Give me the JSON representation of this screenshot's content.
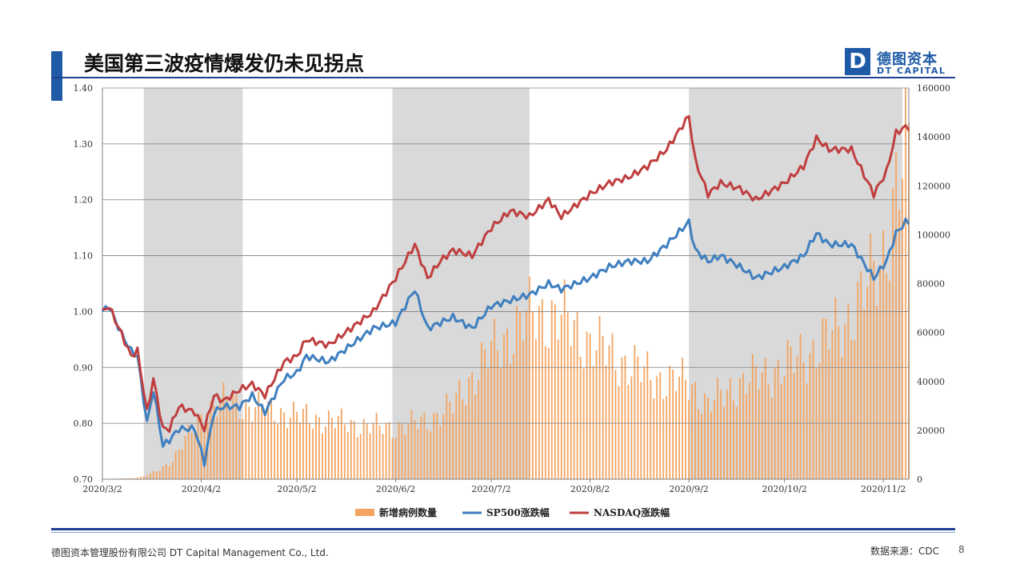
{
  "slide": {
    "title": "美国第三波疫情爆发仍未见拐点",
    "logo_mark": "D",
    "logo_cn": "德图资本",
    "logo_en": "DT CAPITAL",
    "footer_left": "德图资本管理股份有限公司  DT Capital  Management  Co., Ltd.",
    "footer_source": "数据来源：CDC",
    "page_number": "8",
    "accent_color": "#1f5aa6"
  },
  "chart_data": {
    "type": "bar+line",
    "x_tick_labels": [
      "2020/3/2",
      "2020/4/2",
      "2020/5/2",
      "2020/6/2",
      "2020/7/2",
      "2020/8/2",
      "2020/9/2",
      "2020/10/2",
      "2020/11/2"
    ],
    "y_left": {
      "ticks": [
        "0.70",
        "0.80",
        "0.90",
        "1.00",
        "1.10",
        "1.20",
        "1.30",
        "1.40"
      ],
      "lim": [
        0.7,
        1.4
      ]
    },
    "y_right": {
      "ticks": [
        "0",
        "20000",
        "40000",
        "60000",
        "80000",
        "100000",
        "120000",
        "140000",
        "160000"
      ],
      "lim": [
        0,
        160000
      ]
    },
    "grid": true,
    "legend_position": "bottom",
    "shaded_periods": [
      {
        "start": "2020-03-15",
        "end": "2020-04-15"
      },
      {
        "start": "2020-06-01",
        "end": "2020-07-14"
      },
      {
        "start": "2020-09-02",
        "end": "2020-11-08"
      }
    ],
    "series": [
      {
        "name": "新增病例数量",
        "type": "bar",
        "axis": "right",
        "color": "#f4a460",
        "points": [
          [
            "2020-03-02",
            0
          ],
          [
            "2020-03-12",
            500
          ],
          [
            "2020-03-16",
            1500
          ],
          [
            "2020-03-20",
            4000
          ],
          [
            "2020-03-24",
            8000
          ],
          [
            "2020-03-28",
            16000
          ],
          [
            "2020-04-02",
            25000
          ],
          [
            "2020-04-06",
            30000
          ],
          [
            "2020-04-10",
            32000
          ],
          [
            "2020-04-15",
            30000
          ],
          [
            "2020-04-24",
            28000
          ],
          [
            "2020-05-02",
            26000
          ],
          [
            "2020-05-12",
            24000
          ],
          [
            "2020-05-22",
            22000
          ],
          [
            "2020-06-02",
            21000
          ],
          [
            "2020-06-12",
            24000
          ],
          [
            "2020-06-20",
            30000
          ],
          [
            "2020-06-26",
            42000
          ],
          [
            "2020-07-02",
            52000
          ],
          [
            "2020-07-10",
            62000
          ],
          [
            "2020-07-16",
            68000
          ],
          [
            "2020-07-24",
            66000
          ],
          [
            "2020-08-02",
            56000
          ],
          [
            "2020-08-10",
            50000
          ],
          [
            "2020-08-18",
            44000
          ],
          [
            "2020-08-26",
            40000
          ],
          [
            "2020-09-02",
            40000
          ],
          [
            "2020-09-08",
            30000
          ],
          [
            "2020-09-16",
            38000
          ],
          [
            "2020-09-24",
            42000
          ],
          [
            "2020-10-02",
            46000
          ],
          [
            "2020-10-10",
            52000
          ],
          [
            "2020-10-16",
            58000
          ],
          [
            "2020-10-22",
            66000
          ],
          [
            "2020-10-28",
            78000
          ],
          [
            "2020-11-02",
            92000
          ],
          [
            "2020-11-06",
            118000
          ],
          [
            "2020-11-09",
            130000
          ]
        ]
      },
      {
        "name": "SP500涨跌幅",
        "type": "line",
        "axis": "left",
        "color": "#3f7fbf",
        "points": [
          [
            "2020-03-02",
            1.0
          ],
          [
            "2020-03-04",
            1.01
          ],
          [
            "2020-03-08",
            0.96
          ],
          [
            "2020-03-11",
            0.93
          ],
          [
            "2020-03-13",
            0.92
          ],
          [
            "2020-03-16",
            0.8
          ],
          [
            "2020-03-18",
            0.86
          ],
          [
            "2020-03-21",
            0.76
          ],
          [
            "2020-03-23",
            0.77
          ],
          [
            "2020-03-26",
            0.79
          ],
          [
            "2020-03-31",
            0.79
          ],
          [
            "2020-04-03",
            0.73
          ],
          [
            "2020-04-06",
            0.82
          ],
          [
            "2020-04-09",
            0.83
          ],
          [
            "2020-04-14",
            0.83
          ],
          [
            "2020-04-18",
            0.85
          ],
          [
            "2020-04-22",
            0.82
          ],
          [
            "2020-04-28",
            0.88
          ],
          [
            "2020-05-02",
            0.89
          ],
          [
            "2020-05-05",
            0.92
          ],
          [
            "2020-05-12",
            0.91
          ],
          [
            "2020-05-19",
            0.94
          ],
          [
            "2020-05-26",
            0.97
          ],
          [
            "2020-06-02",
            0.98
          ],
          [
            "2020-06-08",
            1.04
          ],
          [
            "2020-06-12",
            0.97
          ],
          [
            "2020-06-16",
            0.98
          ],
          [
            "2020-06-20",
            0.99
          ],
          [
            "2020-06-26",
            0.97
          ],
          [
            "2020-07-02",
            1.01
          ],
          [
            "2020-07-08",
            1.02
          ],
          [
            "2020-07-14",
            1.03
          ],
          [
            "2020-07-20",
            1.05
          ],
          [
            "2020-07-24",
            1.04
          ],
          [
            "2020-08-02",
            1.06
          ],
          [
            "2020-08-08",
            1.08
          ],
          [
            "2020-08-14",
            1.09
          ],
          [
            "2020-08-20",
            1.09
          ],
          [
            "2020-08-26",
            1.12
          ],
          [
            "2020-09-02",
            1.16
          ],
          [
            "2020-09-04",
            1.11
          ],
          [
            "2020-09-08",
            1.09
          ],
          [
            "2020-09-12",
            1.1
          ],
          [
            "2020-09-18",
            1.08
          ],
          [
            "2020-09-23",
            1.06
          ],
          [
            "2020-10-02",
            1.08
          ],
          [
            "2020-10-08",
            1.1
          ],
          [
            "2020-10-12",
            1.14
          ],
          [
            "2020-10-16",
            1.12
          ],
          [
            "2020-10-23",
            1.12
          ],
          [
            "2020-10-30",
            1.06
          ],
          [
            "2020-11-03",
            1.09
          ],
          [
            "2020-11-06",
            1.14
          ],
          [
            "2020-11-09",
            1.16
          ]
        ]
      },
      {
        "name": "NASDAQ涨跌幅",
        "type": "line",
        "axis": "left",
        "color": "#bf3f3f",
        "points": [
          [
            "2020-03-02",
            1.0
          ],
          [
            "2020-03-04",
            1.01
          ],
          [
            "2020-03-08",
            0.96
          ],
          [
            "2020-03-11",
            0.92
          ],
          [
            "2020-03-13",
            0.93
          ],
          [
            "2020-03-16",
            0.82
          ],
          [
            "2020-03-18",
            0.88
          ],
          [
            "2020-03-21",
            0.79
          ],
          [
            "2020-03-23",
            0.79
          ],
          [
            "2020-03-26",
            0.83
          ],
          [
            "2020-03-31",
            0.82
          ],
          [
            "2020-04-03",
            0.79
          ],
          [
            "2020-04-06",
            0.85
          ],
          [
            "2020-04-09",
            0.84
          ],
          [
            "2020-04-14",
            0.86
          ],
          [
            "2020-04-18",
            0.87
          ],
          [
            "2020-04-22",
            0.85
          ],
          [
            "2020-04-28",
            0.91
          ],
          [
            "2020-05-02",
            0.92
          ],
          [
            "2020-05-05",
            0.95
          ],
          [
            "2020-05-12",
            0.94
          ],
          [
            "2020-05-19",
            0.97
          ],
          [
            "2020-05-26",
            1.0
          ],
          [
            "2020-06-02",
            1.06
          ],
          [
            "2020-06-08",
            1.12
          ],
          [
            "2020-06-12",
            1.06
          ],
          [
            "2020-06-16",
            1.09
          ],
          [
            "2020-06-20",
            1.11
          ],
          [
            "2020-06-26",
            1.1
          ],
          [
            "2020-07-02",
            1.15
          ],
          [
            "2020-07-08",
            1.18
          ],
          [
            "2020-07-14",
            1.17
          ],
          [
            "2020-07-20",
            1.2
          ],
          [
            "2020-07-24",
            1.17
          ],
          [
            "2020-08-02",
            1.21
          ],
          [
            "2020-08-08",
            1.23
          ],
          [
            "2020-08-14",
            1.24
          ],
          [
            "2020-08-20",
            1.26
          ],
          [
            "2020-08-26",
            1.29
          ],
          [
            "2020-09-02",
            1.35
          ],
          [
            "2020-09-04",
            1.27
          ],
          [
            "2020-09-08",
            1.21
          ],
          [
            "2020-09-12",
            1.23
          ],
          [
            "2020-09-18",
            1.22
          ],
          [
            "2020-09-23",
            1.2
          ],
          [
            "2020-10-02",
            1.23
          ],
          [
            "2020-10-08",
            1.26
          ],
          [
            "2020-10-12",
            1.31
          ],
          [
            "2020-10-16",
            1.29
          ],
          [
            "2020-10-23",
            1.29
          ],
          [
            "2020-10-30",
            1.21
          ],
          [
            "2020-11-03",
            1.25
          ],
          [
            "2020-11-06",
            1.32
          ],
          [
            "2020-11-09",
            1.33
          ]
        ]
      }
    ]
  }
}
